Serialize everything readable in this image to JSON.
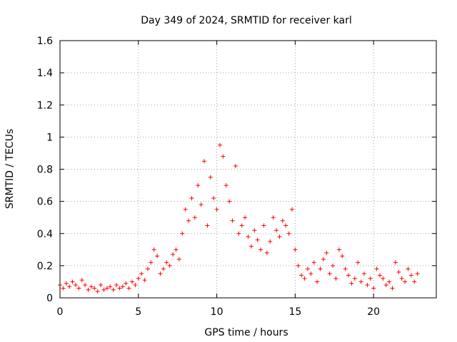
{
  "chart_data": {
    "type": "scatter",
    "title": "Day 349 of 2024, SRMTID for receiver karl",
    "xlabel": "GPS time / hours",
    "ylabel": "SRMTID / TECUs",
    "xlim": [
      0,
      24
    ],
    "ylim": [
      0,
      1.6
    ],
    "xticks": [
      0,
      5,
      10,
      15,
      20
    ],
    "xtick_labels": [
      "0",
      "5",
      "10",
      "15",
      "20"
    ],
    "yticks": [
      0,
      0.2,
      0.4,
      0.6,
      0.8,
      1.0,
      1.2,
      1.4,
      1.6
    ],
    "ytick_labels": [
      "0",
      "0.2",
      "0.4",
      "0.6",
      "0.8",
      "1",
      "1.2",
      "1.4",
      "1.6"
    ],
    "grid": true,
    "marker": "plus",
    "series_color": "#ff0000",
    "series": [
      {
        "name": "SRMTID",
        "x": [
          0.0,
          0.2,
          0.4,
          0.6,
          0.8,
          1.0,
          1.2,
          1.4,
          1.6,
          1.8,
          2.0,
          2.2,
          2.4,
          2.6,
          2.8,
          3.0,
          3.2,
          3.4,
          3.6,
          3.8,
          4.0,
          4.2,
          4.4,
          4.6,
          4.8,
          5.0,
          5.2,
          5.4,
          5.6,
          5.8,
          6.0,
          6.2,
          6.4,
          6.6,
          6.8,
          7.0,
          7.2,
          7.4,
          7.6,
          7.8,
          8.0,
          8.2,
          8.4,
          8.6,
          8.8,
          9.0,
          9.2,
          9.4,
          9.6,
          9.8,
          10.0,
          10.2,
          10.4,
          10.6,
          10.8,
          11.0,
          11.2,
          11.4,
          11.6,
          11.8,
          12.0,
          12.2,
          12.4,
          12.6,
          12.8,
          13.0,
          13.2,
          13.4,
          13.6,
          13.8,
          14.0,
          14.2,
          14.4,
          14.6,
          14.8,
          15.0,
          15.2,
          15.4,
          15.6,
          15.8,
          16.0,
          16.2,
          16.4,
          16.6,
          16.8,
          17.0,
          17.2,
          17.4,
          17.6,
          17.8,
          18.0,
          18.2,
          18.4,
          18.6,
          18.8,
          19.0,
          19.2,
          19.4,
          19.6,
          19.8,
          20.0,
          20.2,
          20.4,
          20.6,
          20.8,
          21.0,
          21.2,
          21.4,
          21.6,
          21.8,
          22.0,
          22.2,
          22.4,
          22.6,
          22.8
        ],
        "y": [
          0.08,
          0.06,
          0.09,
          0.07,
          0.1,
          0.08,
          0.06,
          0.11,
          0.08,
          0.05,
          0.07,
          0.06,
          0.04,
          0.08,
          0.05,
          0.06,
          0.07,
          0.05,
          0.08,
          0.06,
          0.07,
          0.09,
          0.06,
          0.1,
          0.08,
          0.12,
          0.15,
          0.11,
          0.18,
          0.22,
          0.3,
          0.26,
          0.15,
          0.18,
          0.22,
          0.2,
          0.27,
          0.3,
          0.24,
          0.4,
          0.55,
          0.48,
          0.62,
          0.5,
          0.7,
          0.58,
          0.85,
          0.45,
          0.75,
          0.62,
          0.55,
          0.95,
          0.88,
          0.7,
          0.6,
          0.48,
          0.82,
          0.4,
          0.45,
          0.5,
          0.38,
          0.32,
          0.42,
          0.36,
          0.3,
          0.45,
          0.28,
          0.35,
          0.5,
          0.42,
          0.38,
          0.48,
          0.45,
          0.4,
          0.55,
          0.3,
          0.2,
          0.14,
          0.12,
          0.18,
          0.15,
          0.22,
          0.1,
          0.18,
          0.24,
          0.28,
          0.15,
          0.2,
          0.12,
          0.3,
          0.26,
          0.18,
          0.14,
          0.09,
          0.12,
          0.22,
          0.1,
          0.15,
          0.08,
          0.12,
          0.06,
          0.18,
          0.14,
          0.12,
          0.08,
          0.1,
          0.06,
          0.22,
          0.16,
          0.12,
          0.1,
          0.18,
          0.14,
          0.1,
          0.15
        ]
      }
    ]
  }
}
